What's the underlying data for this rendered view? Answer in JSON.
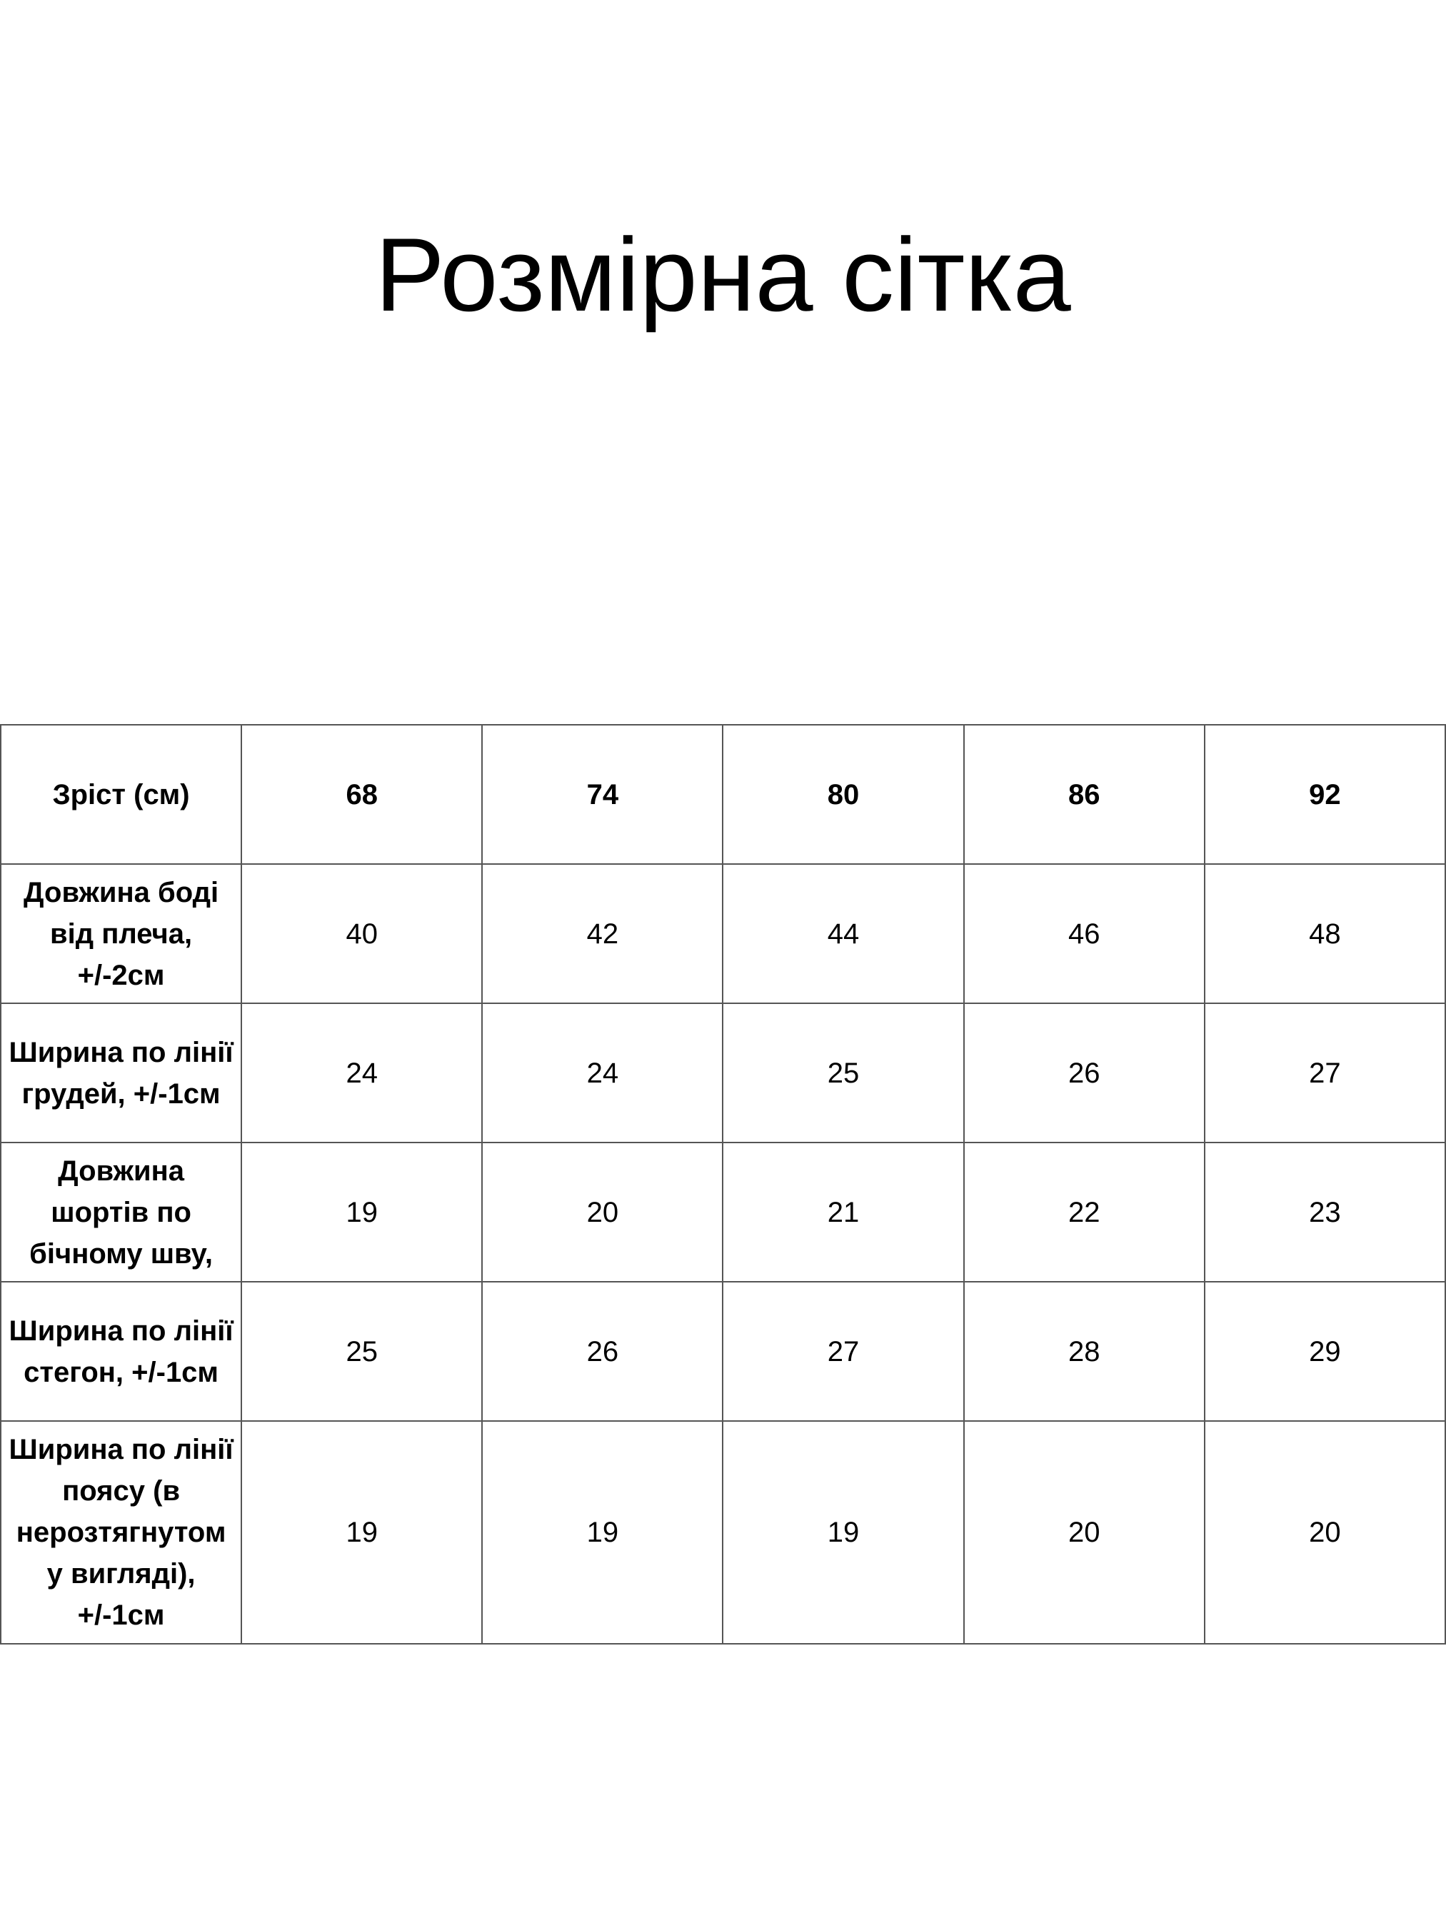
{
  "title": "Розмірна сітка",
  "table": {
    "header": {
      "label": "Зріст (см)",
      "sizes": [
        "68",
        "74",
        "80",
        "86",
        "92"
      ]
    },
    "rows": [
      {
        "label": "Довжина боді від плеча, +/-2см",
        "values": [
          "40",
          "42",
          "44",
          "46",
          "48"
        ]
      },
      {
        "label": "Ширина по лінії грудей, +/-1см",
        "values": [
          "24",
          "24",
          "25",
          "26",
          "27"
        ]
      },
      {
        "label": "Довжина шортів по бічному шву,",
        "values": [
          "19",
          "20",
          "21",
          "22",
          "23"
        ]
      },
      {
        "label": "Ширина по лінії стегон, +/-1см",
        "values": [
          "25",
          "26",
          "27",
          "28",
          "29"
        ]
      },
      {
        "label": "Ширина по лінії поясу (в нерозтягнутом у вигляді), +/-1см",
        "values": [
          "19",
          "19",
          "19",
          "20",
          "20"
        ]
      }
    ]
  }
}
